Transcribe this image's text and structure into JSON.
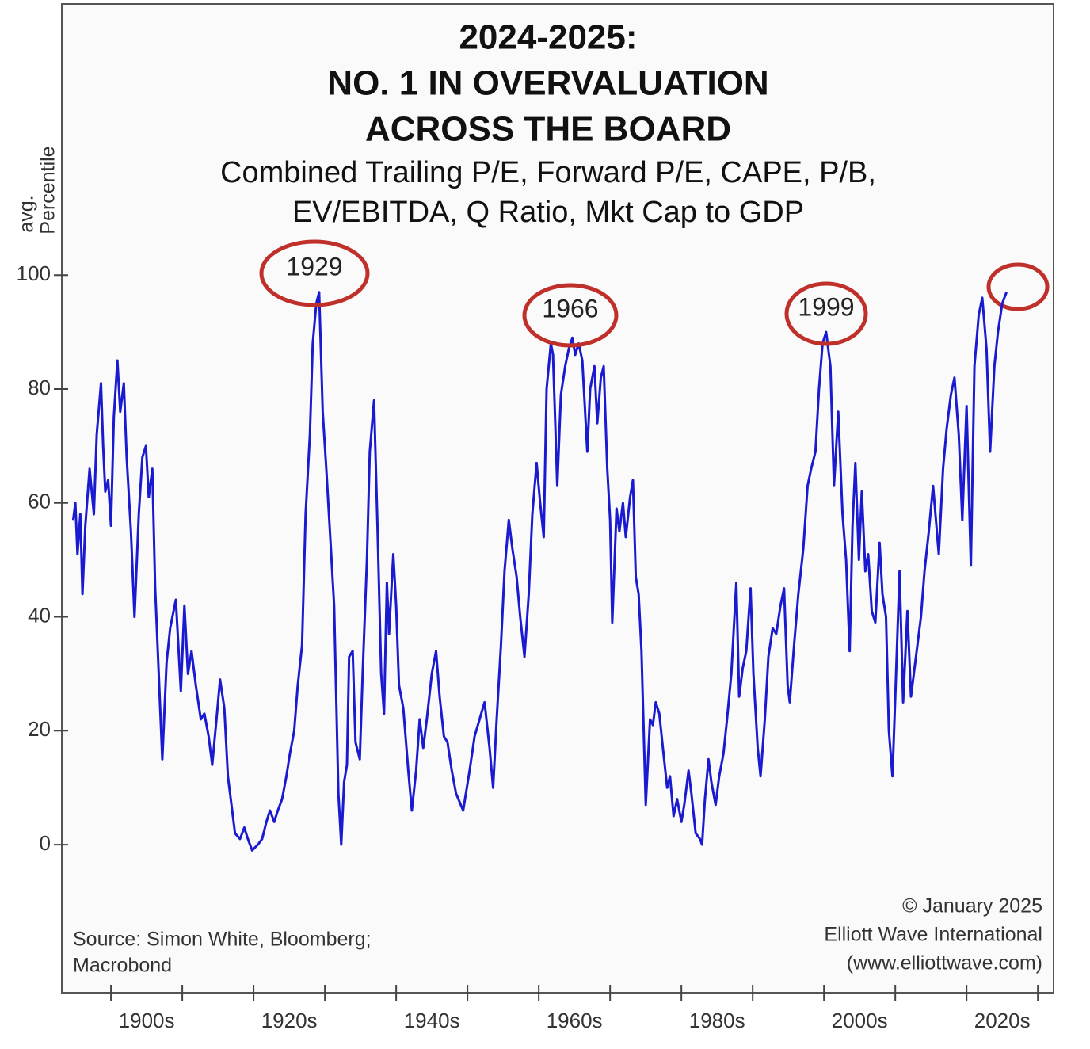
{
  "chart_data": {
    "type": "line",
    "title_lines": [
      "2024-2025:",
      "NO. 1 IN OVERVALUATION",
      "ACROSS THE BOARD"
    ],
    "subtitle_lines": [
      "Combined Trailing P/E, Forward P/E, CAPE, P/B,",
      "EV/EBITDA, Q Ratio, Mkt Cap to GDP"
    ],
    "ylabel_lines": [
      "avg.",
      "Percentile"
    ],
    "source_lines": [
      "Source: Simon White, Bloomberg;",
      "Macrobond"
    ],
    "credit_lines": [
      "© January 2025",
      "Elliott Wave International",
      "(www.elliottwave.com)"
    ],
    "annotations": [
      "1929",
      "1966",
      "1999"
    ],
    "color": "#1a1ad0",
    "xlim": [
      1893.1,
      2032.2
    ],
    "ylim": [
      -26,
      147.6
    ],
    "yticks": [
      0,
      20,
      40,
      60,
      80,
      100
    ],
    "xticks": [
      1900,
      1910,
      1920,
      1930,
      1940,
      1950,
      1960,
      1970,
      1980,
      1990,
      2000,
      2010,
      2020,
      2030
    ],
    "xtick_labels": [
      {
        "value": 1905,
        "label": "1900s"
      },
      {
        "value": 1925,
        "label": "1920s"
      },
      {
        "value": 1945,
        "label": "1940s"
      },
      {
        "value": 1965,
        "label": "1960s"
      },
      {
        "value": 1985,
        "label": "1980s"
      },
      {
        "value": 2005,
        "label": "2000s"
      },
      {
        "value": 2025,
        "label": "2020s"
      }
    ],
    "x": [
      1894.7,
      1895.0,
      1895.3,
      1895.7,
      1896.0,
      1896.4,
      1897.0,
      1897.6,
      1898.0,
      1898.6,
      1898.9,
      1899.2,
      1899.6,
      1900.0,
      1900.4,
      1900.9,
      1901.3,
      1901.8,
      1902.2,
      1902.8,
      1903.3,
      1903.9,
      1904.4,
      1904.9,
      1905.3,
      1905.8,
      1906.2,
      1906.7,
      1907.2,
      1907.8,
      1908.3,
      1909.1,
      1909.8,
      1910.3,
      1910.8,
      1911.3,
      1911.9,
      1912.6,
      1913.1,
      1913.7,
      1914.2,
      1914.8,
      1915.3,
      1915.9,
      1916.4,
      1917.0,
      1917.4,
      1918.1,
      1918.7,
      1919.2,
      1919.8,
      1920.6,
      1921.2,
      1921.8,
      1922.3,
      1922.9,
      1923.4,
      1924.0,
      1924.6,
      1925.1,
      1925.7,
      1926.2,
      1926.8,
      1927.3,
      1927.9,
      1928.3,
      1928.8,
      1929.2,
      1929.7,
      1930.2,
      1930.8,
      1931.3,
      1931.9,
      1932.3,
      1932.7,
      1933.1,
      1933.4,
      1933.9,
      1934.3,
      1934.9,
      1935.3,
      1935.9,
      1936.3,
      1936.9,
      1937.4,
      1937.9,
      1938.3,
      1938.7,
      1939.0,
      1939.6,
      1940.0,
      1940.4,
      1941.0,
      1941.7,
      1942.2,
      1942.8,
      1943.3,
      1943.8,
      1944.3,
      1945.0,
      1945.6,
      1946.1,
      1946.7,
      1947.2,
      1947.8,
      1948.4,
      1949.4,
      1950.3,
      1951.0,
      1951.7,
      1952.4,
      1953.1,
      1953.6,
      1954.1,
      1954.7,
      1955.2,
      1955.8,
      1956.3,
      1956.9,
      1957.4,
      1958.0,
      1958.6,
      1959.1,
      1959.7,
      1960.2,
      1960.7,
      1961.1,
      1961.7,
      1962.0,
      1962.6,
      1963.1,
      1963.7,
      1964.2,
      1964.7,
      1965.1,
      1965.6,
      1966.1,
      1966.8,
      1967.2,
      1967.8,
      1968.2,
      1968.7,
      1969.1,
      1969.6,
      1970.0,
      1970.3,
      1970.9,
      1971.3,
      1971.8,
      1972.2,
      1972.8,
      1973.2,
      1973.6,
      1974.0,
      1974.4,
      1975.0,
      1975.6,
      1976.0,
      1976.4,
      1976.9,
      1977.4,
      1978.0,
      1978.4,
      1978.9,
      1979.4,
      1980.0,
      1980.4,
      1981.0,
      1981.4,
      1982.0,
      1982.6,
      1982.9,
      1983.3,
      1983.8,
      1984.2,
      1984.8,
      1985.3,
      1985.9,
      1986.4,
      1987.0,
      1987.7,
      1988.1,
      1988.6,
      1989.1,
      1989.7,
      1990.1,
      1990.7,
      1991.1,
      1991.7,
      1992.2,
      1992.8,
      1993.3,
      1993.9,
      1994.4,
      1994.9,
      1995.2,
      1995.8,
      1996.4,
      1997.1,
      1997.7,
      1998.2,
      1998.8,
      1999.3,
      1999.8,
      2000.3,
      2000.9,
      2001.4,
      2002.0,
      2002.6,
      2003.1,
      2003.6,
      2004.0,
      2004.4,
      2004.9,
      2005.3,
      2005.8,
      2006.2,
      2006.7,
      2007.2,
      2007.8,
      2008.2,
      2008.7,
      2009.1,
      2009.6,
      2010.0,
      2010.6,
      2011.1,
      2011.7,
      2012.2,
      2012.9,
      2013.6,
      2014.1,
      2014.7,
      2015.3,
      2016.1,
      2016.7,
      2017.2,
      2017.8,
      2018.3,
      2018.9,
      2019.4,
      2020.0,
      2020.6,
      2021.1,
      2021.7,
      2022.2,
      2022.8,
      2023.3,
      2023.9,
      2024.4,
      2025.0,
      2025.6
    ],
    "values": [
      57,
      60,
      51,
      58,
      44,
      56,
      66,
      58,
      72,
      81,
      70,
      62,
      64,
      56,
      75,
      85,
      76,
      81,
      68,
      55,
      40,
      58,
      68,
      70,
      61,
      66,
      45,
      30,
      15,
      32,
      38,
      43,
      27,
      42,
      30,
      34,
      28,
      22,
      23,
      19,
      14,
      22,
      29,
      24,
      12,
      6,
      2,
      1,
      3,
      1,
      -1,
      0,
      1,
      4,
      6,
      4,
      6,
      8,
      12,
      16,
      20,
      28,
      35,
      58,
      72,
      88,
      95,
      97,
      76,
      66,
      53,
      42,
      9,
      0,
      11,
      14,
      33,
      34,
      18,
      15,
      30,
      50,
      69,
      78,
      55,
      30,
      23,
      46,
      37,
      51,
      42,
      28,
      24,
      13,
      6,
      13,
      22,
      17,
      22,
      30,
      34,
      26,
      19,
      18,
      13,
      9,
      6,
      13,
      19,
      22,
      25,
      17,
      10,
      22,
      35,
      48,
      57,
      52,
      47,
      40,
      33,
      44,
      58,
      67,
      60,
      54,
      80,
      88,
      86,
      63,
      79,
      84,
      87,
      89,
      86,
      88,
      85,
      69,
      80,
      84,
      74,
      82,
      84,
      66,
      57,
      39,
      59,
      55,
      60,
      54,
      61,
      64,
      47,
      44,
      34,
      7,
      22,
      21,
      25,
      23,
      17,
      10,
      12,
      5,
      8,
      4,
      7,
      13,
      9,
      2,
      1,
      0,
      8,
      15,
      11,
      7,
      12,
      16,
      22,
      30,
      46,
      26,
      31,
      34,
      45,
      30,
      17,
      12,
      22,
      33,
      38,
      37,
      42,
      45,
      28,
      25,
      35,
      44,
      52,
      63,
      66,
      69,
      80,
      88,
      90,
      84,
      63,
      76,
      58,
      50,
      34,
      56,
      67,
      50,
      62,
      48,
      51,
      41,
      39,
      53,
      44,
      40,
      20,
      12,
      26,
      48,
      25,
      41,
      26,
      33,
      40,
      48,
      55,
      63,
      51,
      66,
      73,
      79,
      82,
      72,
      57,
      77,
      49,
      84,
      93,
      96,
      87,
      69,
      84,
      90,
      95,
      97
    ]
  }
}
